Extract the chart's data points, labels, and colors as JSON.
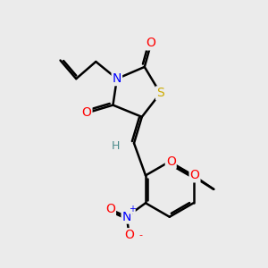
{
  "bg_color": "#ebebeb",
  "bond_color": "#000000",
  "bond_width": 1.8,
  "atom_colors": {
    "O": "#ff0000",
    "N": "#0000ff",
    "S": "#ccaa00",
    "H": "#4a8a8a",
    "C": "#000000"
  },
  "font_size": 10,
  "fig_size": [
    3.0,
    3.0
  ],
  "dpi": 100
}
